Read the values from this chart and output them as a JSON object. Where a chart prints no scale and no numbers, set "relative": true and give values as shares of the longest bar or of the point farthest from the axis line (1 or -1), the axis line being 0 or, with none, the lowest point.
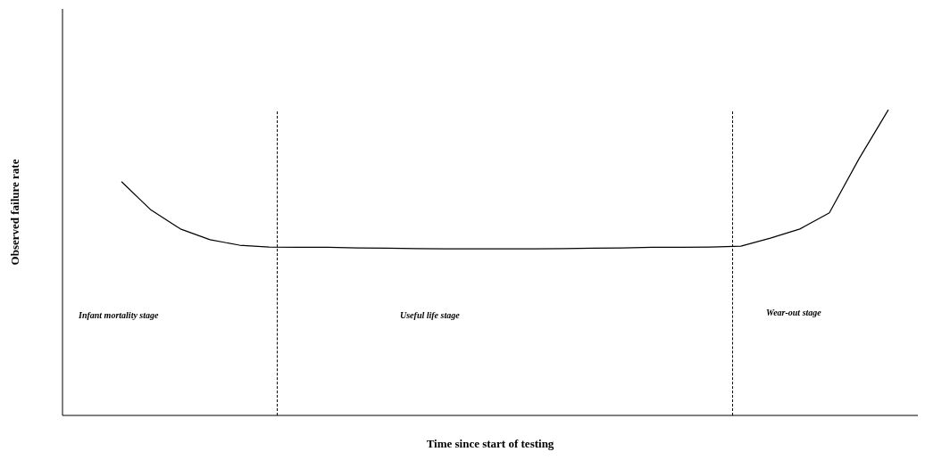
{
  "chart_data": {
    "type": "line",
    "relative": true,
    "xlabel": "Time since start of testing",
    "ylabel": "Observed failure rate",
    "categories": [
      null,
      null,
      null,
      null,
      null,
      null,
      null,
      null,
      null,
      null,
      null,
      null,
      null,
      null,
      null,
      null,
      null,
      null,
      null,
      null,
      null,
      null,
      null,
      null,
      null,
      null,
      null,
      null,
      null,
      null
    ],
    "series": [
      {
        "color": "#000000",
        "values": [
          null,
          null,
          0.765,
          0.672,
          0.61,
          0.575,
          0.557,
          0.551,
          0.55,
          0.55,
          0.548,
          0.547,
          0.546,
          0.545,
          0.545,
          0.545,
          0.545,
          0.546,
          0.547,
          0.548,
          0.55,
          0.55,
          0.551,
          0.554,
          0.58,
          0.61,
          0.663,
          0.839,
          1,
          null
        ]
      }
    ],
    "annotations": [
      "Infant mortality stage",
      "Useful life stage",
      "Wear-out stage"
    ],
    "grid": false,
    "legend": false,
    "marker": "none",
    "line_style": "solid"
  }
}
